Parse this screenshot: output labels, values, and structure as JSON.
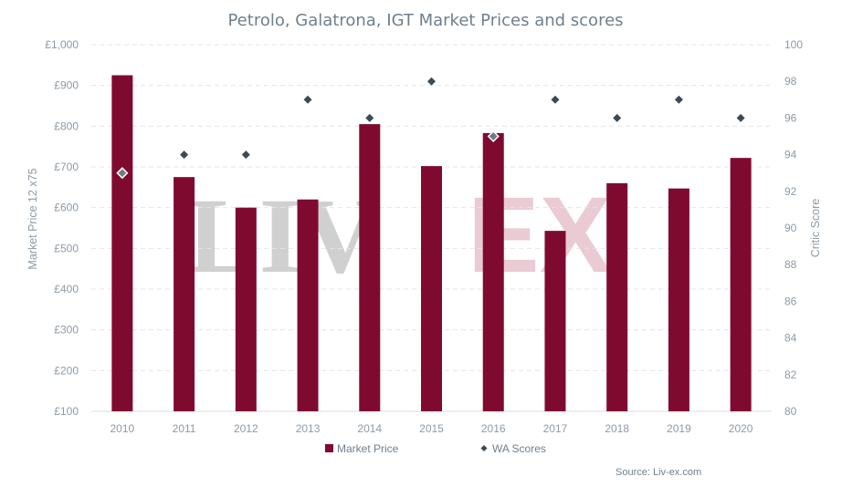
{
  "colors": {
    "bar": "#7f0a30",
    "score_marker": "#3b4a57",
    "score_marker_highlight": "#6f7b85",
    "watermark_liv": "#c8c8c8",
    "watermark_ex": "#e7c3cd"
  },
  "chart_data": {
    "type": "bar",
    "title": "Petrolo, Galatrona, IGT Market Prices and scores",
    "categories": [
      "2010",
      "2011",
      "2012",
      "2013",
      "2014",
      "2015",
      "2016",
      "2017",
      "2018",
      "2019",
      "2020"
    ],
    "series": [
      {
        "name": "Market Price",
        "type": "bar",
        "axis": "left",
        "values": [
          925,
          675,
          600,
          620,
          805,
          702,
          783,
          543,
          660,
          647,
          722
        ]
      },
      {
        "name": "WA Scores",
        "type": "scatter",
        "axis": "right",
        "values": [
          93,
          94,
          94,
          97,
          96,
          98,
          95,
          97,
          96,
          97,
          96
        ]
      }
    ],
    "ylabel": "Market Price 12 x75",
    "ylabel_right": "Critic Score",
    "ylim": [
      100,
      1000
    ],
    "ylim_right": [
      80,
      100
    ],
    "yticks": [
      "£100",
      "£200",
      "£300",
      "£400",
      "£500",
      "£600",
      "£700",
      "£800",
      "£900",
      "£1,000"
    ],
    "yticks_right": [
      "80",
      "82",
      "84",
      "86",
      "88",
      "90",
      "92",
      "94",
      "96",
      "98",
      "100"
    ],
    "grid": true,
    "legend_position": "bottom",
    "source": "Source: Liv-ex.com",
    "watermark": "LIV|EX"
  }
}
